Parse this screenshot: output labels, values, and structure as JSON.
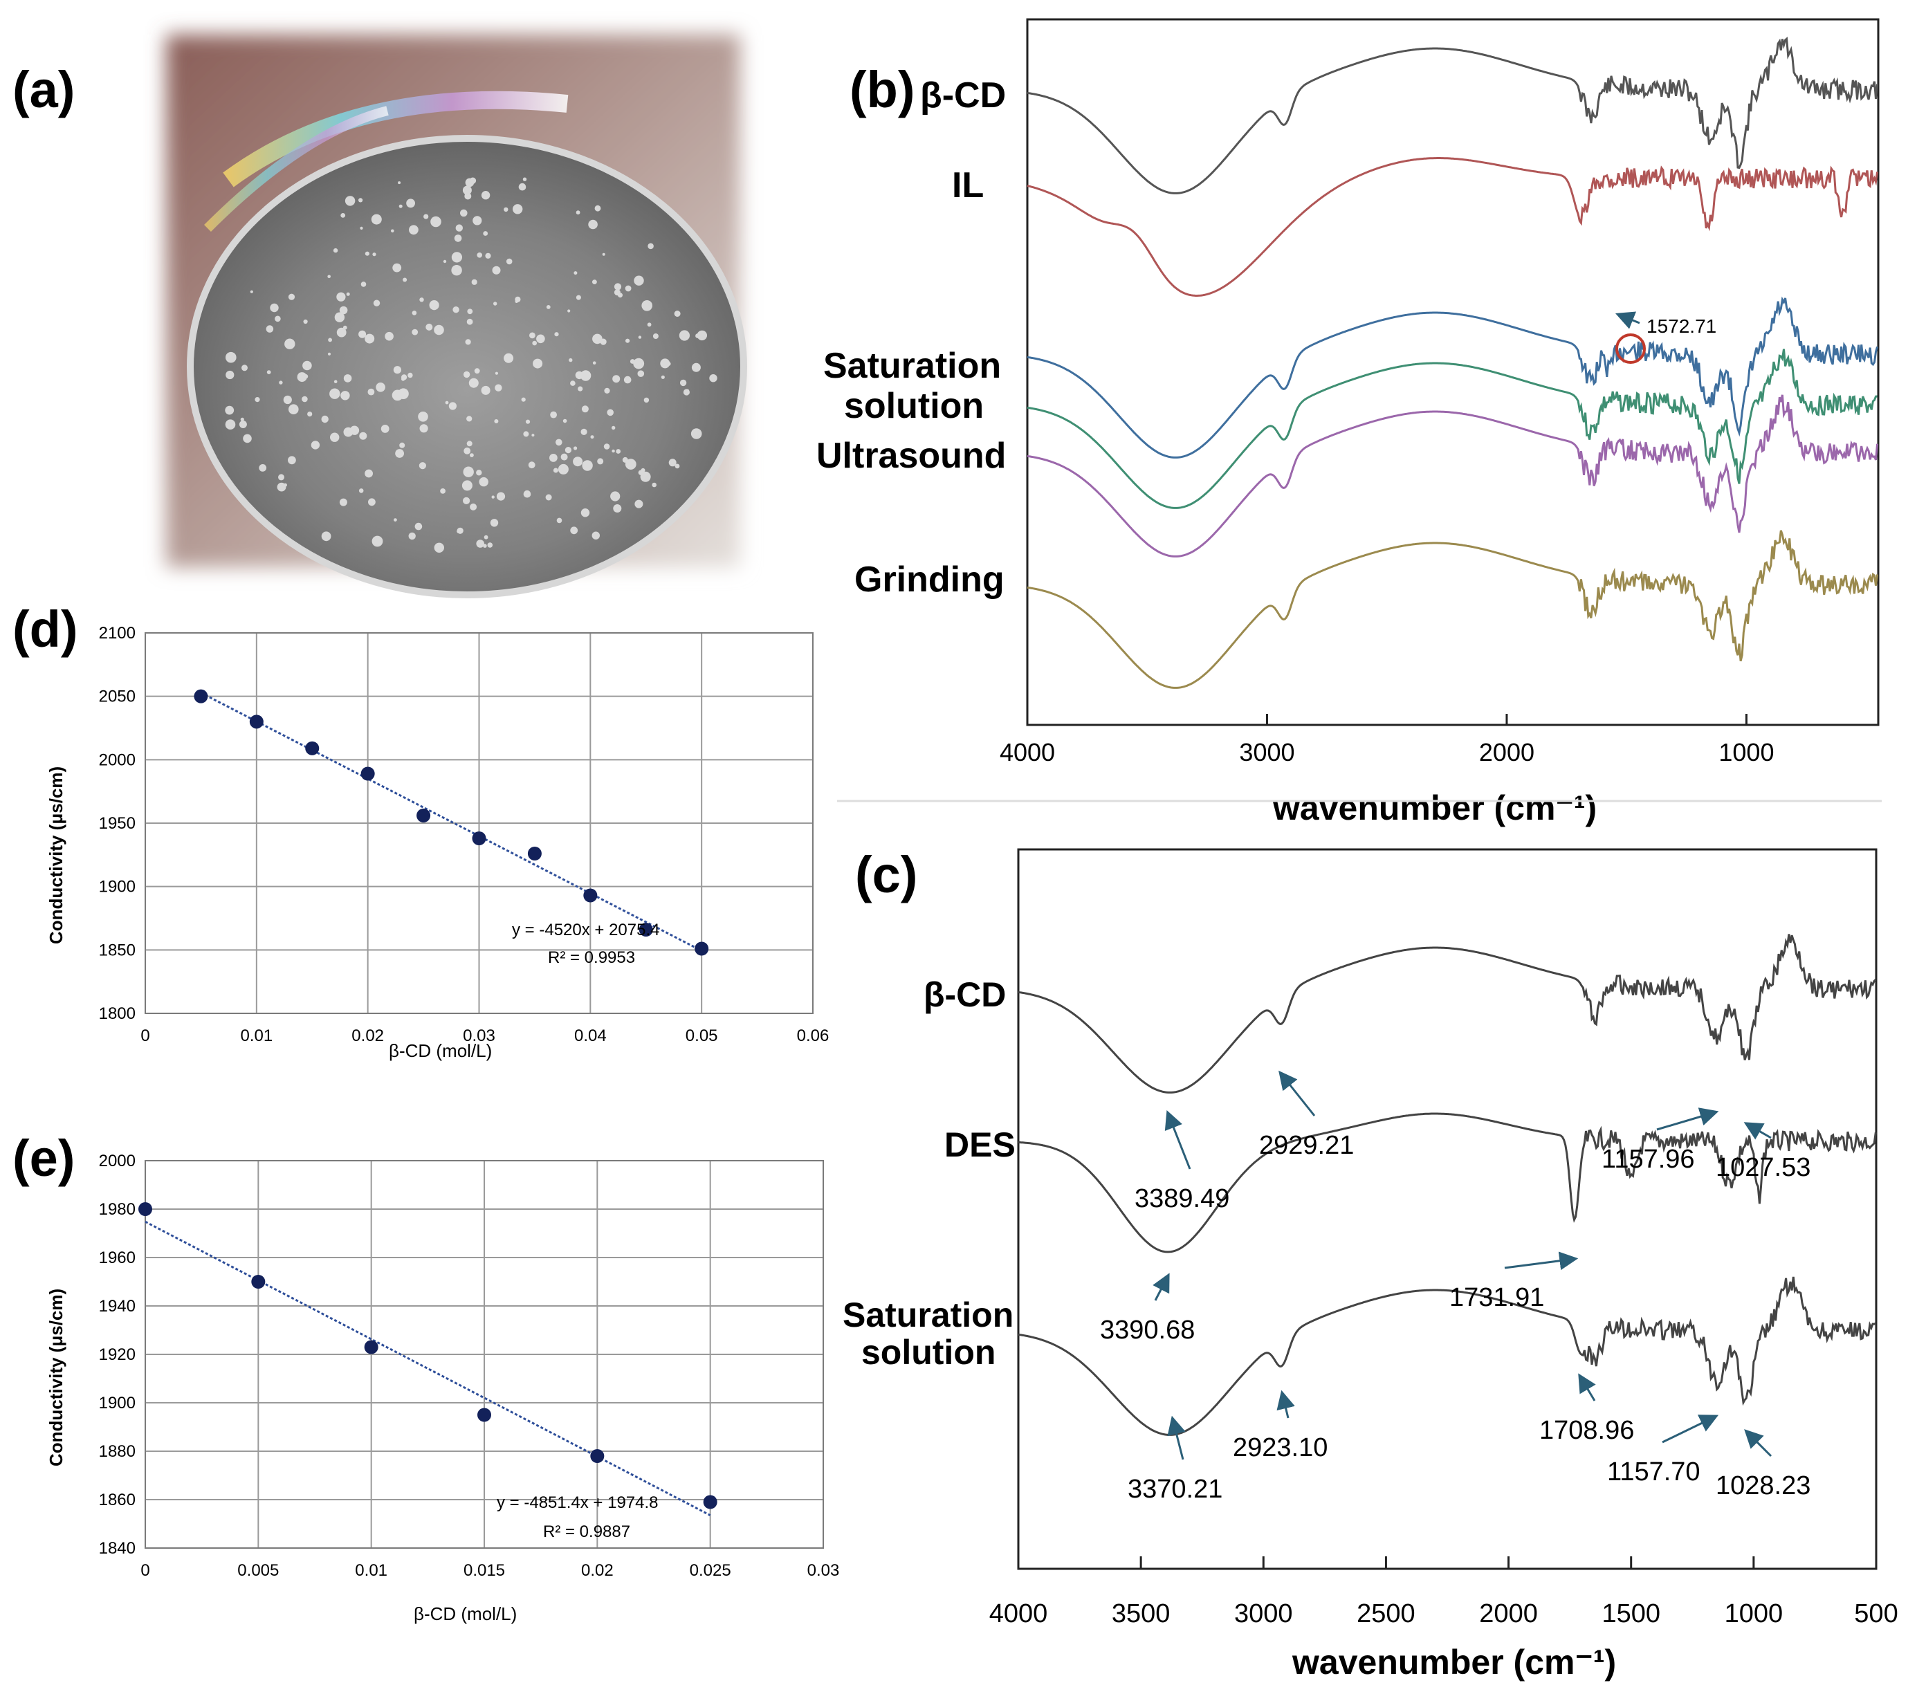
{
  "panel_labels": {
    "a": "(a)",
    "b": "(b)",
    "c": "(c)",
    "d": "(d)",
    "e": "(e)"
  },
  "photo": {
    "description_icon": "beaker-photo"
  },
  "chart_data": [
    {
      "id": "b",
      "type": "line",
      "xlabel": "wavenumber (cm⁻¹)",
      "xlim": [
        4000,
        450
      ],
      "xticks": [
        4000,
        3000,
        2000,
        1000
      ],
      "series": [
        {
          "name": "β-CD",
          "color": "#555555"
        },
        {
          "name": "IL",
          "color": "#b05656"
        },
        {
          "name": "Saturation solution",
          "color": "#3f6f9e"
        },
        {
          "name": "Ultrasound",
          "color": "#3f8f73"
        },
        {
          "name": "Grinding",
          "color": "#9b67ab"
        },
        {
          "name": "",
          "color": "#9b8a4e"
        }
      ],
      "annotations": [
        "1572.71"
      ]
    },
    {
      "id": "c",
      "type": "line",
      "xlabel": "wavenumber (cm⁻¹)",
      "xlim": [
        4000,
        500
      ],
      "xticks": [
        4000,
        3500,
        3000,
        2500,
        2000,
        1500,
        1000,
        500
      ],
      "series": [
        {
          "name": "β-CD",
          "color": "#444444"
        },
        {
          "name": "DES",
          "color": "#444444"
        },
        {
          "name": "Saturation solution",
          "color": "#444444"
        }
      ],
      "annotations": [
        "3389.49",
        "2929.21",
        "1157.96",
        "1027.53",
        "3390.68",
        "1731.91",
        "3370.21",
        "2923.10",
        "1708.96",
        "1157.70",
        "1028.23"
      ]
    },
    {
      "id": "d",
      "type": "scatter",
      "xlabel": "β-CD  (mol/L)",
      "ylabel": "Conductivity (μs/cm)",
      "xlim": [
        0,
        0.06
      ],
      "ylim": [
        1800,
        2100
      ],
      "xticks": [
        "0",
        "0.01",
        "0.02",
        "0.03",
        "0.04",
        "0.05",
        "0.06"
      ],
      "yticks": [
        "1800",
        "1850",
        "1900",
        "1950",
        "2000",
        "2050",
        "2100"
      ],
      "x": [
        0.005,
        0.01,
        0.015,
        0.02,
        0.025,
        0.03,
        0.035,
        0.04,
        0.045,
        0.05
      ],
      "y": [
        2050,
        2030,
        2009,
        1989,
        1956,
        1938,
        1926,
        1893,
        1866,
        1851
      ],
      "trendline": {
        "slope": -4520,
        "intercept": 2075.4
      },
      "equation": "y = -4520x + 2075.4",
      "r2": "R² = 0.9953"
    },
    {
      "id": "e",
      "type": "scatter",
      "xlabel": "β-CD  (mol/L)",
      "ylabel": "Conductivity (μs/cm)",
      "xlim": [
        0,
        0.03
      ],
      "ylim": [
        1840,
        2000
      ],
      "xticks": [
        "0",
        "0.005",
        "0.01",
        "0.015",
        "0.02",
        "0.025",
        "0.03"
      ],
      "yticks": [
        "1840",
        "1860",
        "1880",
        "1900",
        "1920",
        "1940",
        "1960",
        "1980",
        "2000"
      ],
      "x": [
        0,
        0.005,
        0.01,
        0.015,
        0.02,
        0.025
      ],
      "y": [
        1980,
        1950,
        1923,
        1895,
        1878,
        1859
      ],
      "trendline": {
        "slope": -4851.4,
        "intercept": 1974.8
      },
      "equation": "y = -4851.4x + 1974.8",
      "r2": "R² = 0.9887"
    }
  ]
}
